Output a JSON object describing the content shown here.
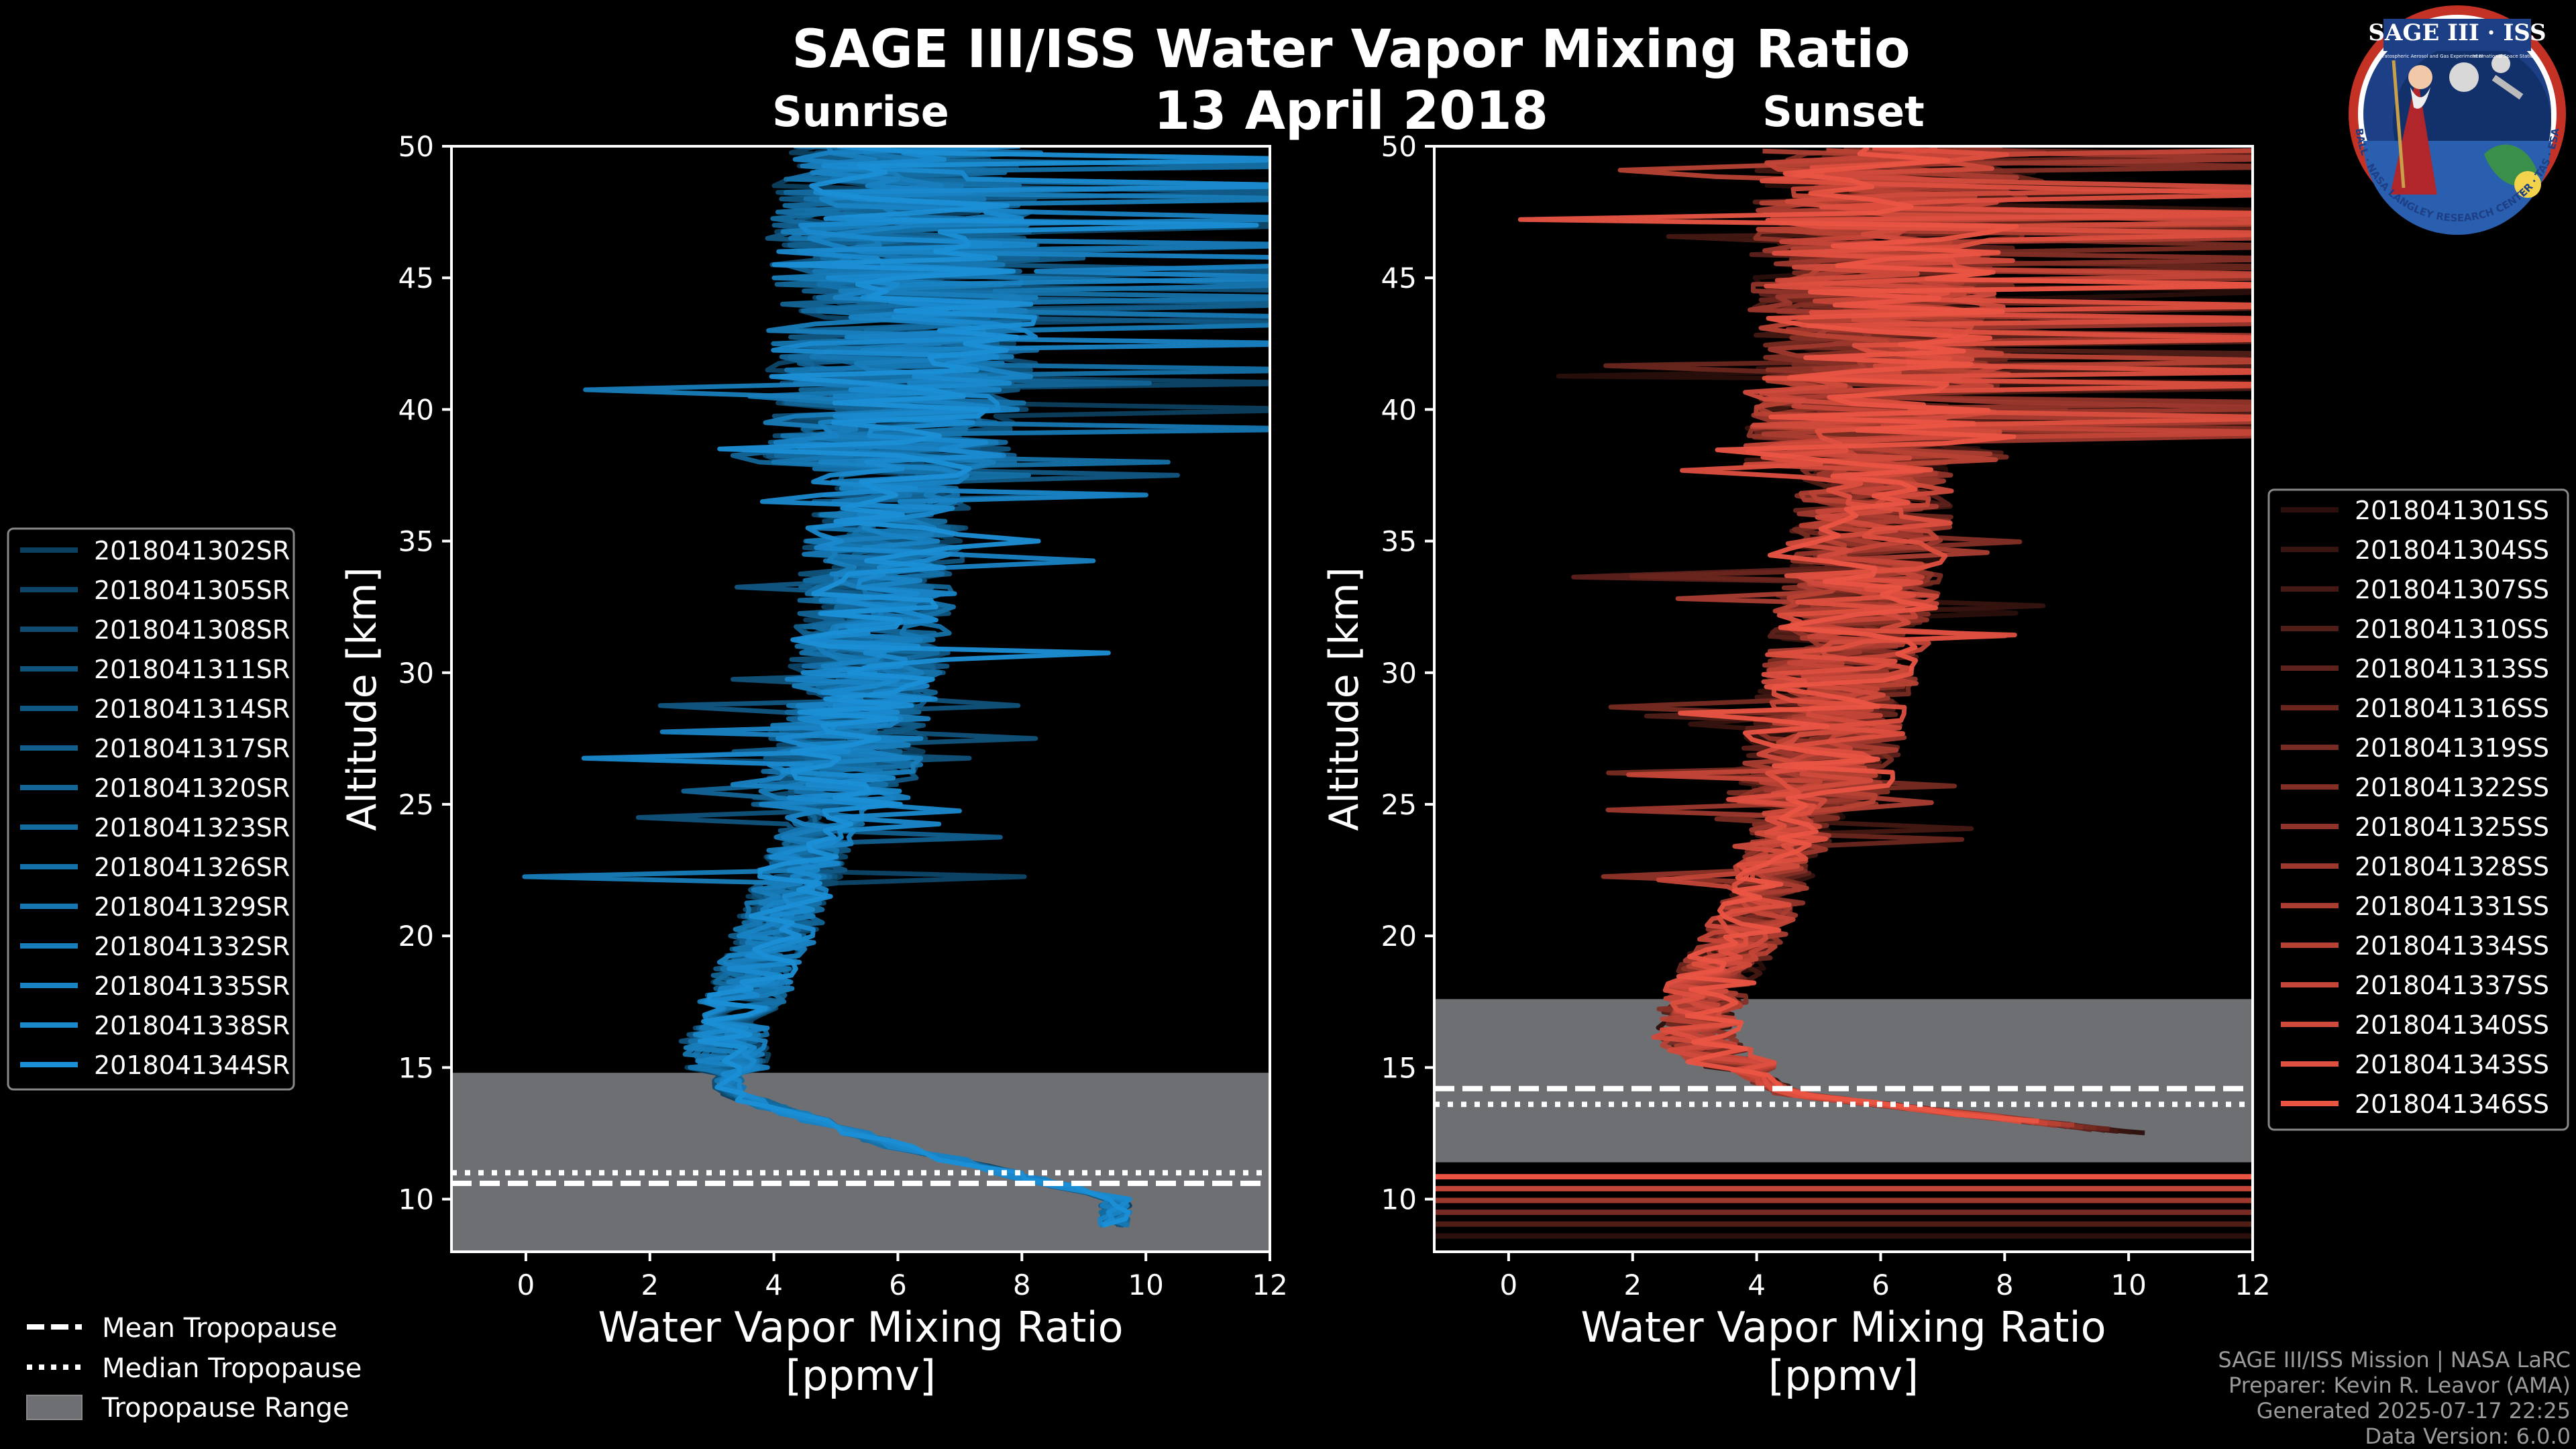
{
  "figure": {
    "title": "SAGE III/ISS Water Vapor Mixing Ratio",
    "date": "13 April 2018"
  },
  "colors": {
    "background": "#000000",
    "sunrise_base": "#1b8fd6",
    "sunset_base": "#ea5443",
    "tropopause_band": "#6d6f73"
  },
  "logo": {
    "title": "SAGE III · ISS",
    "subtitle_lines": [
      "Stratospheric Aerosol and Gas Experiment III",
      "International Space Station"
    ],
    "ring_text": "BALL · NASA LANGLEY RESEARCH CENTER · TAS · ESA"
  },
  "chart_data": [
    {
      "type": "line",
      "panel": "sunrise",
      "title": "Sunrise",
      "xlabel": "Water Vapor Mixing Ratio\n[ppmv]",
      "xlabel_lines": [
        "Water Vapor Mixing Ratio",
        "[ppmv]"
      ],
      "ylabel": "Altitude [km]",
      "xlim": [
        -1.2,
        12
      ],
      "ylim": [
        8,
        50
      ],
      "xticks": [
        0,
        2,
        4,
        6,
        8,
        10,
        12
      ],
      "yticks": [
        10,
        15,
        20,
        25,
        30,
        35,
        40,
        45,
        50
      ],
      "legend_position": "left",
      "series_names": [
        "2018041302SR",
        "2018041305SR",
        "2018041308SR",
        "2018041311SR",
        "2018041314SR",
        "2018041317SR",
        "2018041320SR",
        "2018041323SR",
        "2018041326SR",
        "2018041329SR",
        "2018041332SR",
        "2018041335SR",
        "2018041338SR",
        "2018041344SR"
      ],
      "tropopause": {
        "mean": 10.6,
        "median": 11.0,
        "range": [
          8,
          14.8
        ]
      },
      "typical_profile": {
        "altitude": [
          10,
          12,
          14,
          16,
          18,
          20,
          25,
          30,
          35,
          40,
          45,
          50
        ],
        "ppmv": [
          9.5,
          6.0,
          3.3,
          3.2,
          3.6,
          4.0,
          4.9,
          5.5,
          5.8,
          6.0,
          6.1,
          6.2
        ]
      }
    },
    {
      "type": "line",
      "panel": "sunset",
      "title": "Sunset",
      "xlabel": "Water Vapor Mixing Ratio\n[ppmv]",
      "xlabel_lines": [
        "Water Vapor Mixing Ratio",
        "[ppmv]"
      ],
      "ylabel": "Altitude [km]",
      "xlim": [
        -1.2,
        12
      ],
      "ylim": [
        8,
        50
      ],
      "xticks": [
        0,
        2,
        4,
        6,
        8,
        10,
        12
      ],
      "yticks": [
        10,
        15,
        20,
        25,
        30,
        35,
        40,
        45,
        50
      ],
      "legend_position": "right",
      "series_names": [
        "2018041301SS",
        "2018041304SS",
        "2018041307SS",
        "2018041310SS",
        "2018041313SS",
        "2018041316SS",
        "2018041319SS",
        "2018041322SS",
        "2018041325SS",
        "2018041328SS",
        "2018041331SS",
        "2018041334SS",
        "2018041337SS",
        "2018041340SS",
        "2018041343SS",
        "2018041346SS"
      ],
      "tropopause": {
        "mean": 14.2,
        "median": 13.6,
        "range": [
          11.4,
          17.6
        ]
      },
      "typical_profile": {
        "altitude": [
          12,
          14,
          16,
          18,
          20,
          25,
          30,
          35,
          40,
          45,
          50
        ],
        "ppmv": [
          12,
          4.5,
          3.0,
          3.2,
          3.8,
          4.8,
          5.4,
          5.8,
          6.0,
          6.1,
          6.2
        ]
      }
    }
  ],
  "shared_legend": {
    "mean": "Mean Tropopause",
    "median": "Median Tropopause",
    "range": "Tropopause Range"
  },
  "credits": {
    "mission": "SAGE III/ISS Mission | NASA LaRC",
    "preparer": "Preparer: Kevin R. Leavor (AMA)",
    "generated": "Generated 2025-07-17 22:25",
    "version": "Data Version: 6.0.0"
  }
}
